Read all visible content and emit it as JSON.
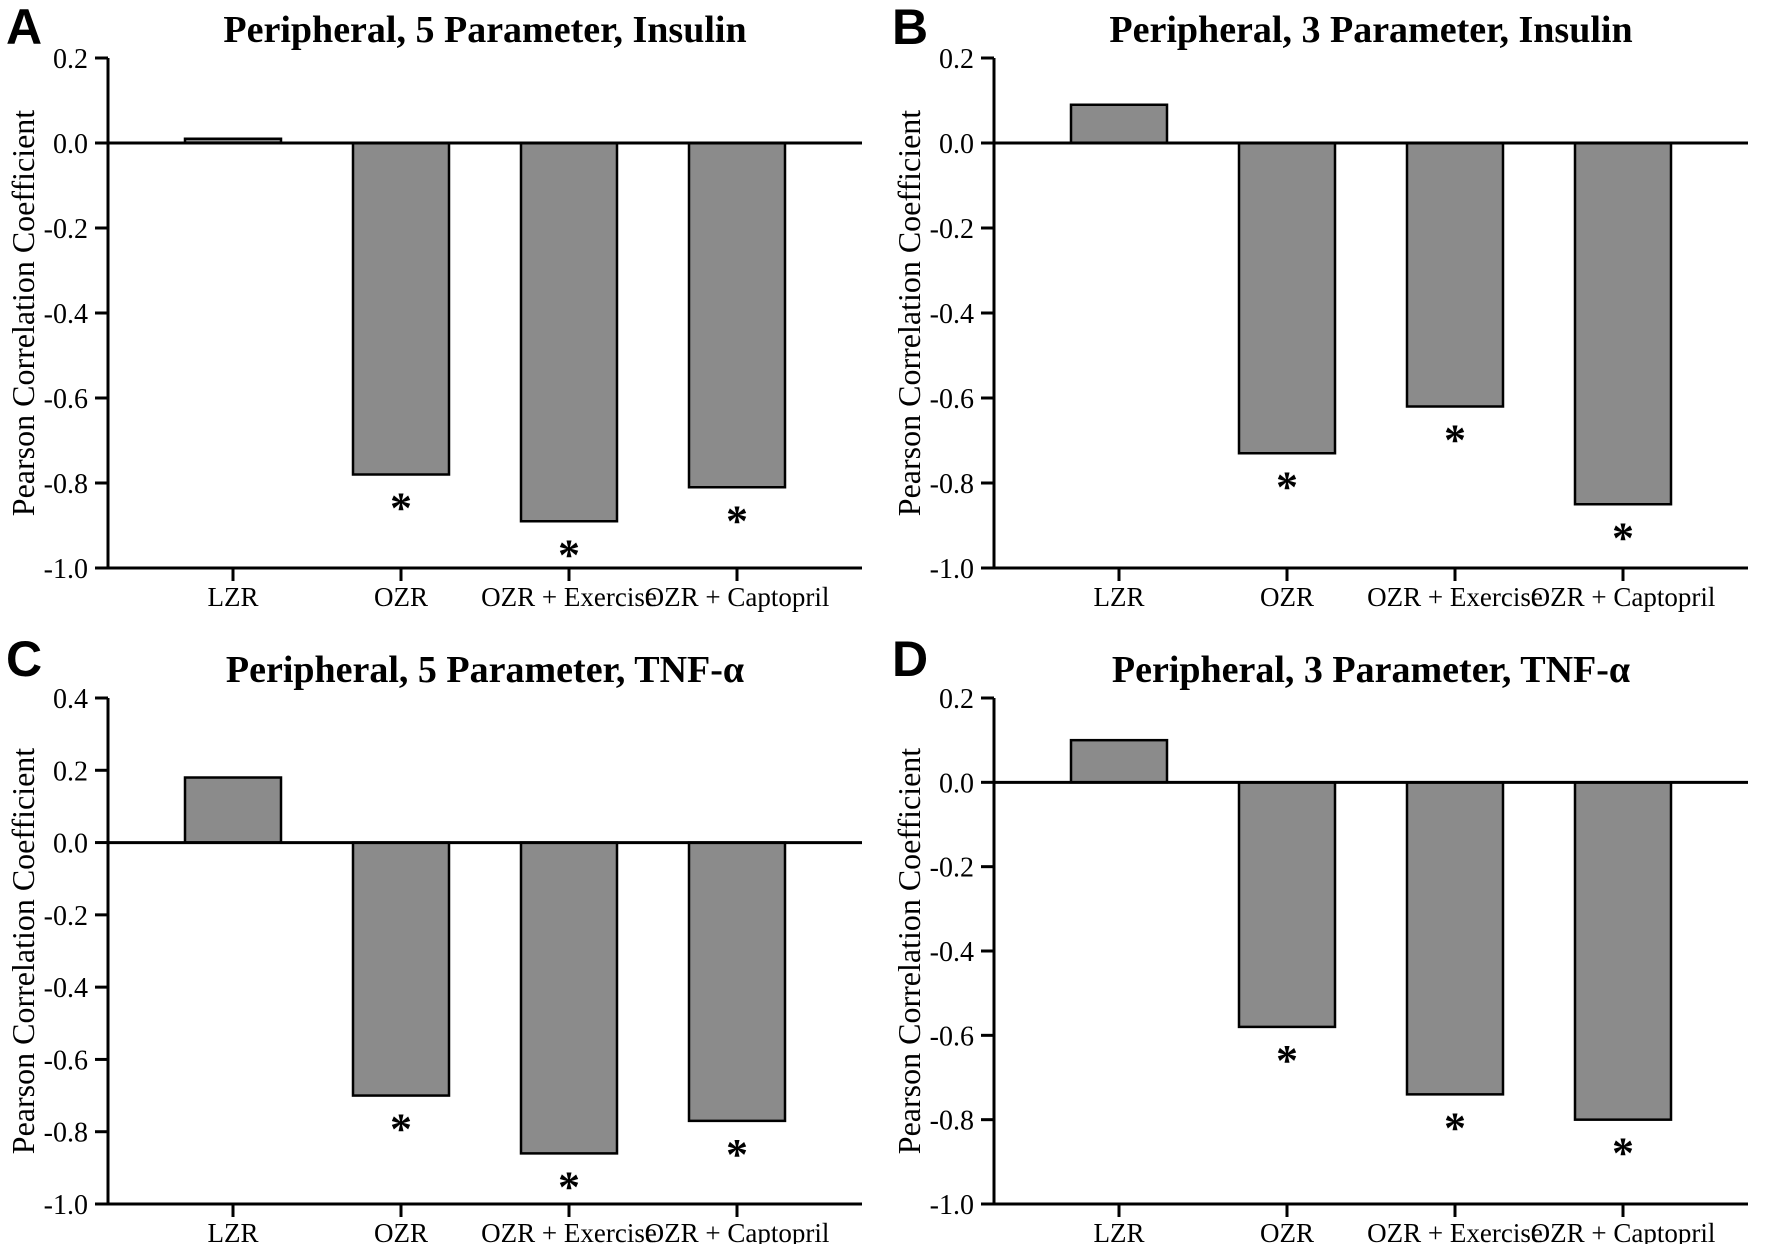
{
  "figure": {
    "background": "#FFFFFF",
    "panel_letters": [
      "A",
      "B",
      "C",
      "D"
    ]
  },
  "colors": {
    "bar_fill": "#8B8B8B",
    "bar_stroke": "#000000",
    "axis": "#000000",
    "text": "#000000"
  },
  "sig_marker": "*",
  "chart_data": [
    {
      "type": "bar",
      "panel_label": "A",
      "title": "Peripheral, 5 Parameter, Insulin",
      "ylabel": "Pearson Correlation Coefficient",
      "xlabel": "",
      "categories": [
        "LZR",
        "OZR",
        "OZR + Exercise",
        "OZR + Captopril"
      ],
      "values": [
        0.01,
        -0.78,
        -0.89,
        -0.81
      ],
      "significant": [
        false,
        true,
        true,
        true
      ],
      "ylim": [
        -1.0,
        0.2
      ],
      "yticks": [
        "0.2",
        "0.0",
        "-0.2",
        "-0.4",
        "-0.6",
        "-0.8",
        "-1.0"
      ],
      "grid": false,
      "legend": "none"
    },
    {
      "type": "bar",
      "panel_label": "B",
      "title": "Peripheral, 3 Parameter, Insulin",
      "ylabel": "Pearson Correlation Coefficient",
      "xlabel": "",
      "categories": [
        "LZR",
        "OZR",
        "OZR + Exercise",
        "OZR + Captopril"
      ],
      "values": [
        0.09,
        -0.73,
        -0.62,
        -0.85
      ],
      "significant": [
        false,
        true,
        true,
        true
      ],
      "ylim": [
        -1.0,
        0.2
      ],
      "yticks": [
        "0.2",
        "0.0",
        "-0.2",
        "-0.4",
        "-0.6",
        "-0.8",
        "-1.0"
      ],
      "grid": false,
      "legend": "none"
    },
    {
      "type": "bar",
      "panel_label": "C",
      "title": "Peripheral, 5 Parameter, TNF-α",
      "ylabel": "Pearson Correlation Coefficient",
      "xlabel": "",
      "categories": [
        "LZR",
        "OZR",
        "OZR + Exercise",
        "OZR + Captopril"
      ],
      "values": [
        0.18,
        -0.7,
        -0.86,
        -0.77
      ],
      "significant": [
        false,
        true,
        true,
        true
      ],
      "ylim": [
        -1.0,
        0.4
      ],
      "yticks": [
        "0.4",
        "0.2",
        "0.0",
        "-0.2",
        "-0.4",
        "-0.6",
        "-0.8",
        "-1.0"
      ],
      "grid": false,
      "legend": "none"
    },
    {
      "type": "bar",
      "panel_label": "D",
      "title": "Peripheral, 3 Parameter, TNF-α",
      "ylabel": "Pearson Correlation Coefficient",
      "xlabel": "",
      "categories": [
        "LZR",
        "OZR",
        "OZR + Exercise",
        "OZR + Captopril"
      ],
      "values": [
        0.1,
        -0.58,
        -0.74,
        -0.8
      ],
      "significant": [
        false,
        true,
        true,
        true
      ],
      "ylim": [
        -1.0,
        0.2
      ],
      "yticks": [
        "0.2",
        "0.0",
        "-0.2",
        "-0.4",
        "-0.6",
        "-0.8",
        "-1.0"
      ],
      "grid": false,
      "legend": "none"
    }
  ]
}
